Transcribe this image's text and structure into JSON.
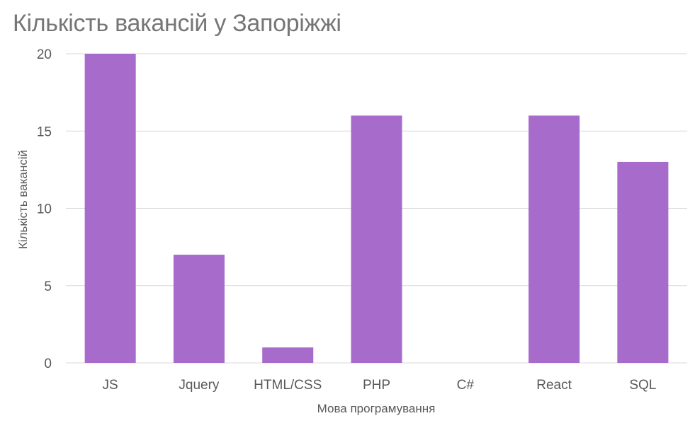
{
  "chart_data": {
    "type": "bar",
    "title": "Кількість вакансій у Запоріжжі",
    "xlabel": "Мова програмування",
    "ylabel": "Кількість вакансій",
    "categories": [
      "JS",
      "Jquery",
      "HTML/CSS",
      "PHP",
      "C#",
      "React",
      "SQL"
    ],
    "values": [
      20,
      7,
      1,
      16,
      0,
      16,
      13
    ],
    "ylim": [
      0,
      20
    ],
    "yticks": [
      0,
      5,
      10,
      15,
      20
    ],
    "grid": true,
    "legend": "none",
    "bar_color": "#A76BCC",
    "grid_color": "#D9D9D9"
  }
}
